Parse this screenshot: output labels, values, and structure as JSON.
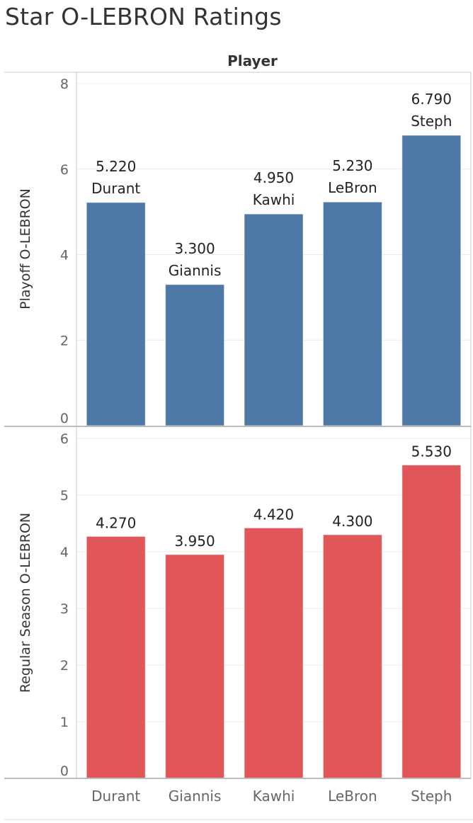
{
  "title": "Star O-LEBRON Ratings",
  "chart_data": {
    "type": "bar",
    "column_header": "Player",
    "categories": [
      "Durant",
      "Giannis",
      "Kawhi",
      "LeBron",
      "Steph"
    ],
    "panels": [
      {
        "ylabel": "Playoff O-LEBRON",
        "ylim": [
          0,
          8
        ],
        "yticks": [
          0,
          2,
          4,
          6,
          8
        ],
        "color": "#4e79a7",
        "values": [
          5.22,
          3.3,
          4.95,
          5.23,
          6.79
        ],
        "value_labels": [
          "5.220",
          "3.300",
          "4.950",
          "5.230",
          "6.790"
        ],
        "show_category_in_label": true
      },
      {
        "ylabel": "Regular Season O-LEBRON",
        "ylim": [
          0,
          6
        ],
        "yticks": [
          0,
          1,
          2,
          3,
          4,
          5,
          6
        ],
        "color": "#e15759",
        "values": [
          4.27,
          3.95,
          4.42,
          4.3,
          5.53
        ],
        "value_labels": [
          "4.270",
          "3.950",
          "4.420",
          "4.300",
          "5.530"
        ],
        "show_category_in_label": false
      }
    ],
    "grid": true,
    "legend": "none"
  }
}
